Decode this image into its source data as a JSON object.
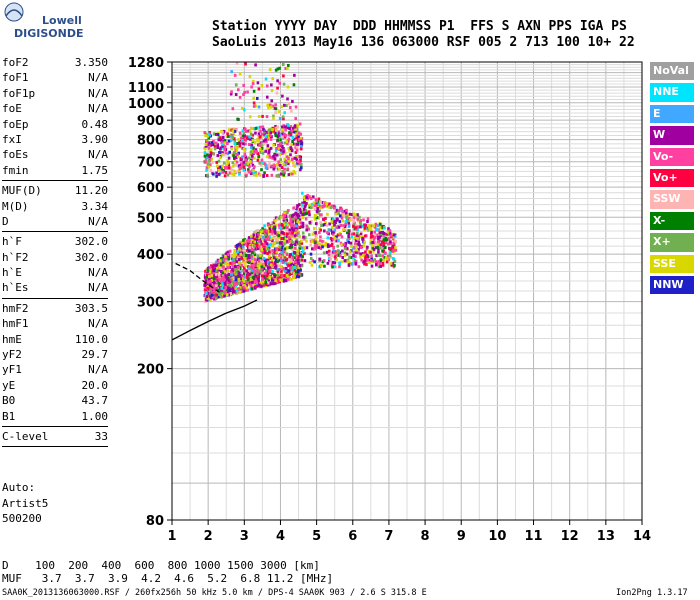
{
  "logo": {
    "line1": "Lowell",
    "line2": "DIGISONDE"
  },
  "header": {
    "line1": "Station YYYY DAY  DDD HHMMSS P1  FFS S AXN PPS IGA PS",
    "line2": "SaoLuis 2013 May16 136 063000 RSF 005 2 713 100 10+ 22"
  },
  "params": {
    "group1": [
      {
        "name": "foF2",
        "value": "3.350"
      },
      {
        "name": "foF1",
        "value": "N/A"
      },
      {
        "name": "foF1p",
        "value": "N/A"
      },
      {
        "name": "foE",
        "value": "N/A"
      },
      {
        "name": "foEp",
        "value": "0.48"
      },
      {
        "name": "fxI",
        "value": "3.90"
      },
      {
        "name": "foEs",
        "value": "N/A"
      },
      {
        "name": "fmin",
        "value": "1.75"
      }
    ],
    "group2": [
      {
        "name": "MUF(D)",
        "value": "11.20"
      },
      {
        "name": "M(D)",
        "value": "3.34"
      },
      {
        "name": "D",
        "value": "N/A"
      }
    ],
    "group3": [
      {
        "name": "h`F",
        "value": "302.0"
      },
      {
        "name": "h`F2",
        "value": "302.0"
      },
      {
        "name": "h`E",
        "value": "N/A"
      },
      {
        "name": "h`Es",
        "value": "N/A"
      }
    ],
    "group4": [
      {
        "name": "hmF2",
        "value": "303.5"
      },
      {
        "name": "hmF1",
        "value": "N/A"
      },
      {
        "name": "hmE",
        "value": "110.0"
      },
      {
        "name": "yF2",
        "value": "29.7"
      },
      {
        "name": "yF1",
        "value": "N/A"
      },
      {
        "name": "yE",
        "value": "20.0"
      },
      {
        "name": "B0",
        "value": "43.7"
      },
      {
        "name": "B1",
        "value": "1.00"
      }
    ],
    "group5": [
      {
        "name": "C-level",
        "value": "33"
      }
    ]
  },
  "auto": {
    "line1": "Auto:",
    "line2": "Artist5",
    "line3": "500200"
  },
  "muf_table": {
    "row1": "D    100  200  400  600  800 1000 1500 3000 [km]",
    "row2": "MUF   3.7  3.7  3.9  4.2  4.6  5.2  6.8 11.2 [MHz]"
  },
  "footer": {
    "left": "SAA0K_2013136063000.RSF / 260fx256h 50 kHz 5.0 km / DPS-4 SAA0K 903 / 2.6 S 315.8 E",
    "right": "Ion2Png 1.3.17"
  },
  "legend": [
    {
      "label": "NoVal",
      "color": "#a0a0a0"
    },
    {
      "label": "NNE",
      "color": "#00e5ff"
    },
    {
      "label": "E",
      "color": "#40a8ff"
    },
    {
      "label": "W",
      "color": "#a000a0"
    },
    {
      "label": "Vo-",
      "color": "#ff40a0"
    },
    {
      "label": "Vo+",
      "color": "#ff0040"
    },
    {
      "label": "SSW",
      "color": "#ffb4b4"
    },
    {
      "label": "X-",
      "color": "#008000"
    },
    {
      "label": "X+",
      "color": "#70b050"
    },
    {
      "label": "SSE",
      "color": "#d8d800"
    },
    {
      "label": "NNW",
      "color": "#2020c8"
    }
  ],
  "chart_data": {
    "type": "scatter",
    "title": "",
    "xlabel": "",
    "ylabel": "",
    "xlim": [
      1,
      14
    ],
    "ylim": [
      80,
      1280
    ],
    "x_ticks": [
      1,
      2,
      3,
      4,
      5,
      6,
      7,
      8,
      9,
      10,
      11,
      12,
      13,
      14
    ],
    "y_ticks": [
      80,
      200,
      300,
      400,
      500,
      600,
      700,
      800,
      900,
      1000,
      1100,
      1280
    ],
    "y_scale": "log",
    "grid": true,
    "echo_regions": [
      {
        "name": "F-layer trace",
        "x_range": [
          1.9,
          4.6
        ],
        "y_range": [
          290,
          520
        ]
      },
      {
        "name": "F-layer second hop",
        "x_range": [
          1.9,
          4.6
        ],
        "y_range": [
          620,
          880
        ]
      },
      {
        "name": "spread F",
        "x_range": [
          4.6,
          7.2
        ],
        "y_range": [
          360,
          580
        ]
      },
      {
        "name": "scattered high echoes",
        "x_range": [
          2.6,
          4.5
        ],
        "y_range": [
          900,
          1280
        ]
      }
    ],
    "profile_curve": {
      "f": [
        1.0,
        1.5,
        2.0,
        2.5,
        3.0,
        3.35
      ],
      "h": [
        238,
        252,
        266,
        280,
        292,
        303
      ]
    },
    "dashed_curve": {
      "f": [
        1.1,
        1.5,
        1.9,
        2.3
      ],
      "h": [
        378,
        362,
        338,
        318
      ]
    }
  }
}
